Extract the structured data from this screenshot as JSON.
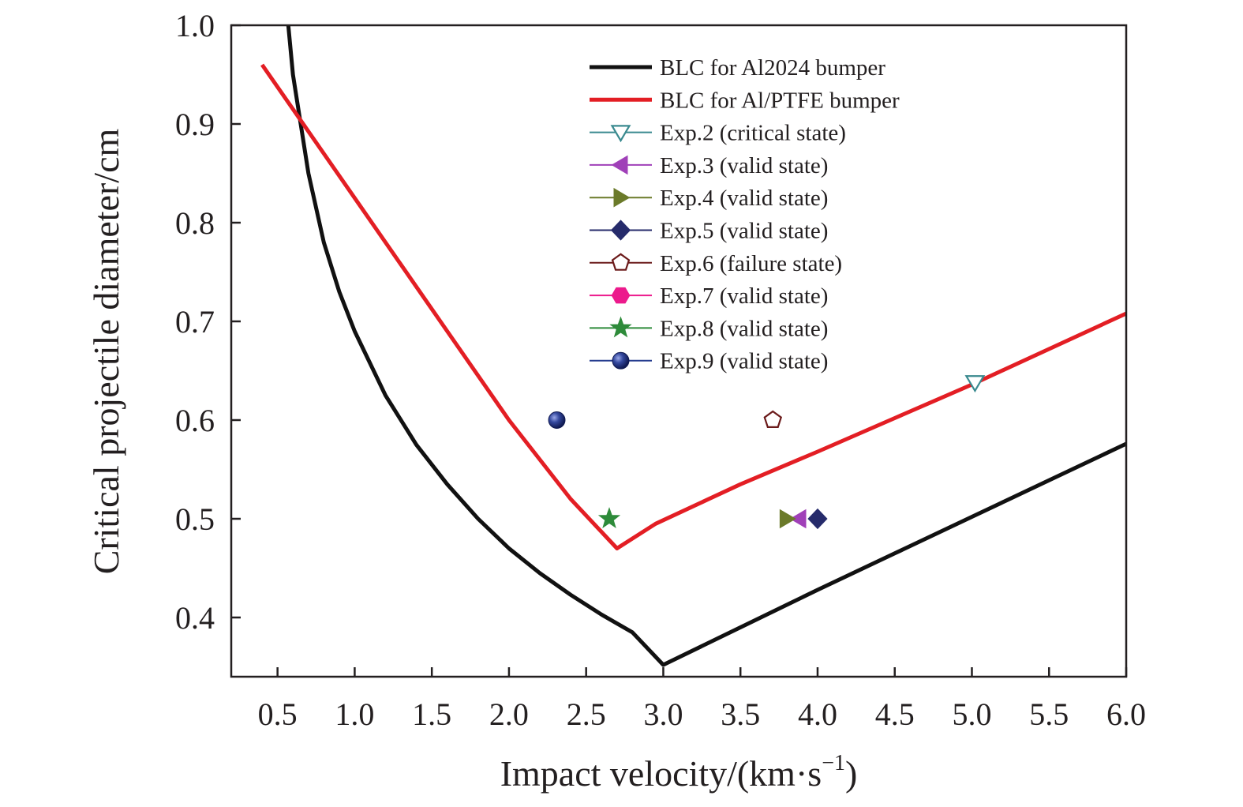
{
  "chart_data": {
    "type": "line",
    "xlabel": "Impact velocity/(km·s",
    "xlabel_sup": "−1",
    "xlabel_close": ")",
    "ylabel": "Critical projectile diameter/cm",
    "xlim": [
      0.2,
      6.0
    ],
    "ylim": [
      0.34,
      1.0
    ],
    "x_ticks": [
      "0.5",
      "1.0",
      "1.5",
      "2.0",
      "2.5",
      "3.0",
      "3.5",
      "4.0",
      "4.5",
      "5.0",
      "5.5",
      "6.0"
    ],
    "y_ticks": [
      "0.4",
      "0.5",
      "0.6",
      "0.7",
      "0.8",
      "0.9",
      "1.0"
    ],
    "legend_position": "top-right",
    "series": [
      {
        "name": "BLC for Al2024 bumper",
        "kind": "line",
        "color": "#111111",
        "points": [
          [
            0.57,
            1.0
          ],
          [
            0.6,
            0.95
          ],
          [
            0.7,
            0.85
          ],
          [
            0.8,
            0.78
          ],
          [
            0.9,
            0.73
          ],
          [
            1.0,
            0.69
          ],
          [
            1.2,
            0.625
          ],
          [
            1.4,
            0.575
          ],
          [
            1.6,
            0.535
          ],
          [
            1.8,
            0.5
          ],
          [
            2.0,
            0.47
          ],
          [
            2.2,
            0.445
          ],
          [
            2.4,
            0.423
          ],
          [
            2.6,
            0.403
          ],
          [
            2.8,
            0.385
          ],
          [
            3.0,
            0.352
          ],
          [
            3.5,
            0.39
          ],
          [
            4.0,
            0.428
          ],
          [
            4.5,
            0.465
          ],
          [
            5.0,
            0.502
          ],
          [
            5.5,
            0.539
          ],
          [
            6.0,
            0.576
          ]
        ]
      },
      {
        "name": "BLC for Al/PTFE bumper",
        "kind": "line",
        "color": "#e31e24",
        "points": [
          [
            0.4,
            0.96
          ],
          [
            0.8,
            0.87
          ],
          [
            1.2,
            0.78
          ],
          [
            1.6,
            0.69
          ],
          [
            2.0,
            0.6
          ],
          [
            2.4,
            0.52
          ],
          [
            2.7,
            0.47
          ],
          [
            2.95,
            0.495
          ],
          [
            3.5,
            0.535
          ],
          [
            4.0,
            0.568
          ],
          [
            4.5,
            0.602
          ],
          [
            5.0,
            0.636
          ],
          [
            5.5,
            0.672
          ],
          [
            6.0,
            0.708
          ]
        ]
      },
      {
        "name": "Exp.2 (critical state)",
        "kind": "marker",
        "marker": "triangle-down",
        "color": "#3a8a8f",
        "filled": false,
        "points": [
          [
            5.02,
            0.638
          ]
        ]
      },
      {
        "name": "Exp.3 (valid state)",
        "kind": "marker",
        "marker": "triangle-left",
        "color": "#a040b8",
        "filled": true,
        "points": [
          [
            3.88,
            0.5
          ]
        ]
      },
      {
        "name": "Exp.4 (valid state)",
        "kind": "marker",
        "marker": "triangle-right",
        "color": "#6b7a2a",
        "filled": true,
        "points": [
          [
            3.8,
            0.5
          ]
        ]
      },
      {
        "name": "Exp.5 (valid state)",
        "kind": "marker",
        "marker": "diamond",
        "color": "#262b6b",
        "filled": true,
        "points": [
          [
            4.0,
            0.5
          ]
        ]
      },
      {
        "name": "Exp.6 (failure state)",
        "kind": "marker",
        "marker": "pentagon",
        "color": "#6b1a1a",
        "filled": false,
        "points": [
          [
            3.71,
            0.6
          ]
        ]
      },
      {
        "name": "Exp.7 (valid state)",
        "kind": "marker",
        "marker": "hexagon",
        "color": "#ec1a8c",
        "filled": true,
        "points": []
      },
      {
        "name": "Exp.8 (valid state)",
        "kind": "marker",
        "marker": "star",
        "color": "#2e8b3a",
        "filled": true,
        "points": [
          [
            2.65,
            0.5
          ]
        ]
      },
      {
        "name": "Exp.9 (valid state)",
        "kind": "marker",
        "marker": "sphere",
        "color": "#253c8f",
        "filled": true,
        "points": [
          [
            2.31,
            0.6
          ]
        ]
      }
    ]
  }
}
